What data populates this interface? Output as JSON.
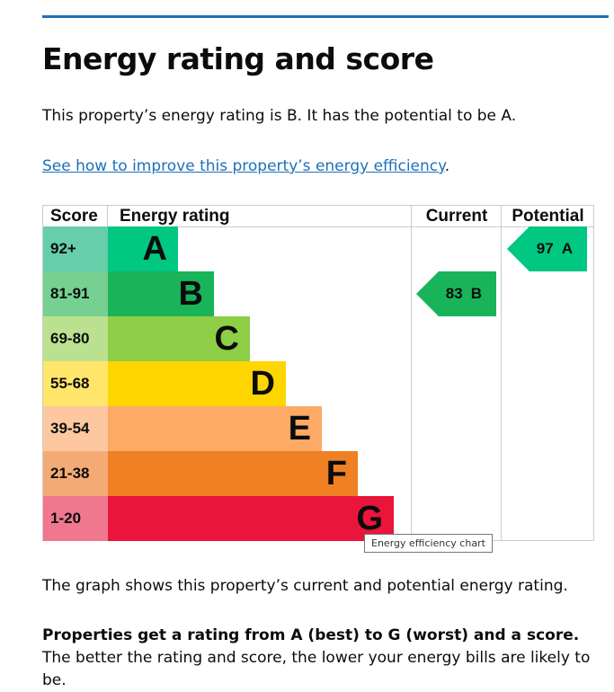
{
  "title": "Energy rating and score",
  "intro": "This property’s energy rating is B. It has the potential to be A.",
  "link": "See how to improve this property’s energy efficiency",
  "link_suffix": ".",
  "chart_data": {
    "type": "bar",
    "headers": {
      "score": "Score",
      "rating": "Energy rating",
      "current": "Current",
      "potential": "Potential"
    },
    "bands": [
      {
        "score": "92+",
        "letter": "A",
        "color": "#00c781",
        "light": "#66ceaa"
      },
      {
        "score": "81-91",
        "letter": "B",
        "color": "#19b459",
        "light": "#75d091"
      },
      {
        "score": "69-80",
        "letter": "C",
        "color": "#8dce46",
        "light": "#bbe190"
      },
      {
        "score": "55-68",
        "letter": "D",
        "color": "#ffd500",
        "light": "#ffe66a"
      },
      {
        "score": "39-54",
        "letter": "E",
        "color": "#fcaa65",
        "light": "#fdc7a0"
      },
      {
        "score": "21-38",
        "letter": "F",
        "color": "#ef8023",
        "light": "#f4aa75"
      },
      {
        "score": "1-20",
        "letter": "G",
        "color": "#e9153b",
        "light": "#f0778e"
      }
    ],
    "current": {
      "score": "83",
      "letter": "B",
      "band": 1,
      "color": "#19b459"
    },
    "potential": {
      "score": "97",
      "letter": "A",
      "band": 0,
      "color": "#00c781"
    }
  },
  "tooltip": "Energy efficiency chart",
  "graph_note": "The graph shows this property’s current and potential energy rating.",
  "rating_bold": "Properties get a rating from A (best) to G (worst) and a score.",
  "rating_rest": " The better the rating and score, the lower your energy bills are likely to be."
}
